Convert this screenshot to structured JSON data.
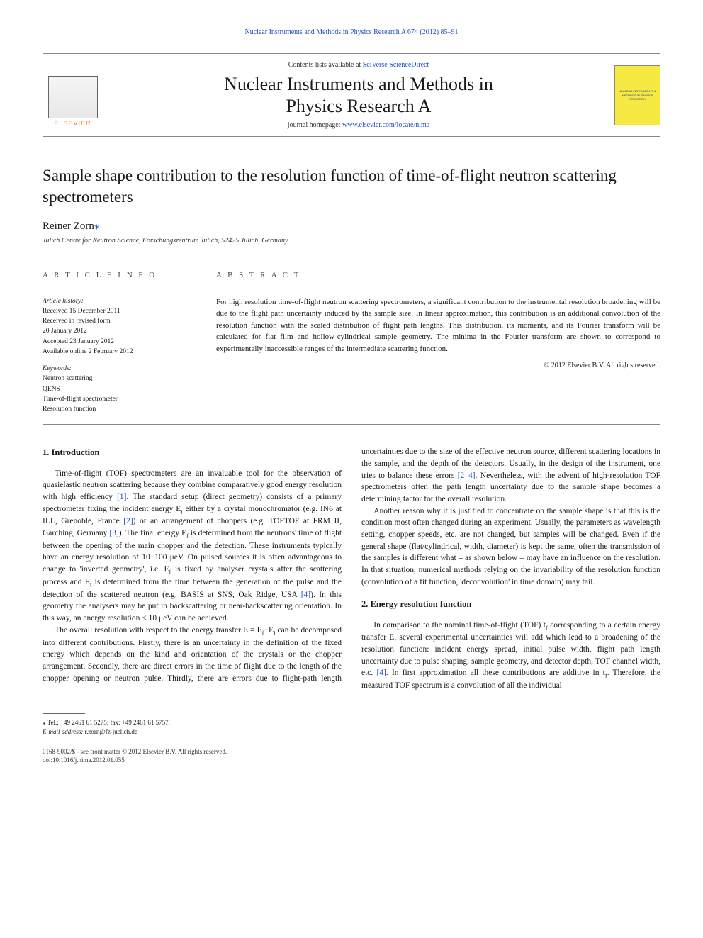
{
  "running_head": "Nuclear Instruments and Methods in Physics Research A 674 (2012) 85–91",
  "header": {
    "contents_prefix": "Contents lists available at ",
    "contents_link": "SciVerse ScienceDirect",
    "journal_title_line1": "Nuclear Instruments and Methods in",
    "journal_title_line2": "Physics Research A",
    "homepage_prefix": "journal homepage: ",
    "homepage_link": "www.elsevier.com/locate/nima",
    "elsevier": "ELSEVIER",
    "cover_text": "NUCLEAR INSTRUMENTS & METHODS IN PHYSICS RESEARCH"
  },
  "article": {
    "title": "Sample shape contribution to the resolution function of time-of-flight neutron scattering spectrometers",
    "author": "Reiner Zorn",
    "author_marker": "⁎",
    "affiliation": "Jülich Centre for Neutron Science, Forschungszentrum Jülich, 52425 Jülich, Germany"
  },
  "info": {
    "label": "A R T I C L E  I N F O",
    "history_label": "Article history:",
    "history": [
      "Received 15 December 2011",
      "Received in revised form",
      "20 January 2012",
      "Accepted 23 January 2012",
      "Available online 2 February 2012"
    ],
    "keywords_label": "Keywords:",
    "keywords": [
      "Neutron scattering",
      "QENS",
      "Time-of-flight spectrometer",
      "Resolution function"
    ]
  },
  "abstract": {
    "label": "A B S T R A C T",
    "text": "For high resolution time-of-flight neutron scattering spectrometers, a significant contribution to the instrumental resolution broadening will be due to the flight path uncertainty induced by the sample size. In linear approximation, this contribution is an additional convolution of the resolution function with the scaled distribution of flight path lengths. This distribution, its moments, and its Fourier transform will be calculated for flat film and hollow-cylindrical sample geometry. The minima in the Fourier transform are shown to correspond to experimentally inaccessible ranges of the intermediate scattering function.",
    "copyright": "© 2012 Elsevier B.V. All rights reserved."
  },
  "sections": {
    "s1_title": "1.  Introduction",
    "s1_p1a": "Time-of-flight (TOF) spectrometers are an invaluable tool for the observation of quasielastic neutron scattering because they combine comparatively good energy resolution with high efficiency ",
    "s1_p1b": ". The standard setup (direct geometry) consists of a primary spectrometer fixing the incident energy E",
    "s1_p1c": " either by a crystal monochromator (e.g. IN6 at ILL, Grenoble, France ",
    "s1_p1d": ") or an arrangement of choppers (e.g. TOFTOF at FRM II, Garching, Germany ",
    "s1_p1e": "). The final energy E",
    "s1_p1f": " is determined from the neutrons' time of flight between the opening of the main chopper and the detection. These instruments typically have an energy resolution of 10−100 μeV. On pulsed sources it is often advantageous to change to 'inverted geometry', i.e. E",
    "s1_p1g": " is fixed by analyser crystals after the scattering process and E",
    "s1_p1h": " is determined from the time between the generation of the pulse and the detection of the scattered neutron (e.g. BASIS at SNS, Oak Ridge, USA ",
    "s1_p1i": "). In this geometry the analysers may be put in backscattering or near-backscattering orientation. In this way, an energy resolution < 10 μeV can be achieved.",
    "s1_p2a": "The overall resolution with respect to the energy transfer E = E",
    "s1_p2b": "−E",
    "s1_p2c": " can be decomposed into different contributions. Firstly, there is an uncertainty in the definition of the fixed energy which depends on the kind and orientation of the crystals or the chopper arrangement. Secondly, there are direct errors in the time of flight due to the length of the chopper opening or neutron pulse. ",
    "s1_p2d": "Thirdly, there are errors due to flight-path length uncertainties due to the size of the effective neutron source, different scattering locations in the sample, and the depth of the detectors. Usually, in the design of the instrument, one tries to balance these errors ",
    "s1_p2e": ". Nevertheless, with the advent of high-resolution TOF spectrometers often the path length uncertainty due to the sample shape becomes a determining factor for the overall resolution.",
    "s1_p3": "Another reason why it is justified to concentrate on the sample shape is that this is the condition most often changed during an experiment. Usually, the parameters as wavelength setting, chopper speeds, etc. are not changed, but samples will be changed. Even if the general shape (flat/cylindrical, width, diameter) is kept the same, often the transmission of the samples is different what – as shown below – may have an influence on the resolution. In that situation, numerical methods relying on the invariability of the resolution function (convolution of a fit function, 'deconvolution' in time domain) may fail.",
    "s2_title": "2.  Energy resolution function",
    "s2_p1a": "In comparison to the nominal time-of-flight (TOF) t",
    "s2_p1b": " corresponding to a certain energy transfer E, several experimental uncertainties will add which lead to a broadening of the resolution function: incident energy spread, initial pulse width, flight path length uncertainty due to pulse shaping, sample geometry, and detector depth, TOF channel width, etc. ",
    "s2_p1c": ". In first approximation all these contributions are additive in t",
    "s2_p1d": ". Therefore, the measured TOF spectrum is a convolution of all the individual"
  },
  "refs": {
    "r1": "[1]",
    "r2": "[2]",
    "r3": "[3]",
    "r4": "[4]",
    "r24": "[2–4]"
  },
  "subs": {
    "i": "i",
    "f": "f"
  },
  "footnote": {
    "corr": "⁎ Tel.: +49 2461 61 5275; fax: +49 2461 61 5757.",
    "email_label": "E-mail address:",
    "email": " r.zorn@fz-juelich.de"
  },
  "footer": {
    "line1": "0168-9002/$ - see front matter © 2012 Elsevier B.V. All rights reserved.",
    "line2": "doi:10.1016/j.nima.2012.01.055"
  },
  "colors": {
    "link": "#2050c0",
    "elsevier_orange": "#ff6600",
    "cover_bg": "#f5e942",
    "rule": "#888888"
  },
  "typography": {
    "body_pt": 11.5,
    "title_pt": 23,
    "journal_title_pt": 26,
    "abstract_pt": 11,
    "meta_pt": 9.5,
    "footnote_pt": 9
  }
}
